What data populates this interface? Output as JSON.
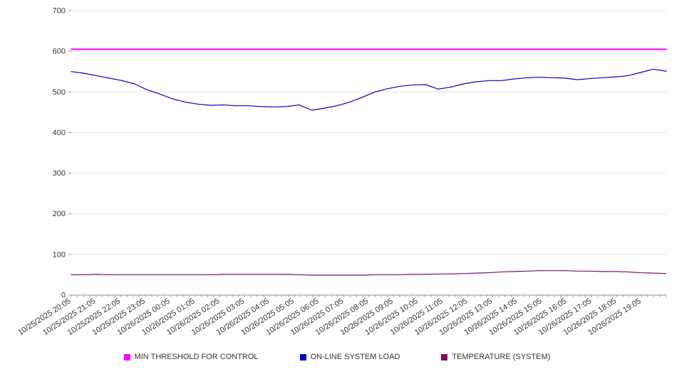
{
  "page": {
    "background": "#ffffff"
  },
  "chart_data": {
    "type": "line",
    "title": "",
    "xlabel": "",
    "ylabel": "",
    "ylim": [
      0,
      700
    ],
    "yticks": [
      0,
      100,
      200,
      300,
      400,
      500,
      600,
      700
    ],
    "grid": true,
    "legend_position": "bottom",
    "axis_color": "#8a8a8a",
    "grid_color": "#e4e4e4",
    "label_color": "#333333",
    "minor_ticks_per_interval": 4,
    "x_labels": [
      "10/25/2025 20:05",
      "10/25/2025 21:05",
      "10/25/2025 22:05",
      "10/25/2025 23:05",
      "10/26/2025 00:05",
      "10/26/2025 01:05",
      "10/26/2025 02:05",
      "10/26/2025 03:05",
      "10/26/2025 04:05",
      "10/26/2025 05:05",
      "10/26/2025 06:05",
      "10/26/2025 07:05",
      "10/26/2025 08:05",
      "10/26/2025 09:05",
      "10/26/2025 10:05",
      "10/26/2025 11:05",
      "10/26/2025 12:05",
      "10/26/2025 13:05",
      "10/26/2025 14:05",
      "10/26/2025 15:05",
      "10/26/2025 16:05",
      "10/26/2025 17:05",
      "10/26/2025 18:05",
      "10/26/2025 19:05"
    ],
    "series": [
      {
        "name": "MIN THRESHOLD FOR CONTROL",
        "color": "#ff00ff",
        "width": 2,
        "values": [
          605,
          605
        ]
      },
      {
        "name": "ON-LINE SYSTEM LOAD",
        "color": "#0000cd",
        "width": 1.2,
        "values": [
          550,
          546,
          540,
          534,
          528,
          520,
          505,
          495,
          483,
          475,
          470,
          467,
          468,
          466,
          466,
          464,
          463,
          464,
          468,
          455,
          460,
          466,
          475,
          487,
          500,
          508,
          514,
          517,
          518,
          507,
          512,
          520,
          525,
          528,
          528,
          532,
          535,
          536,
          535,
          534,
          530,
          533,
          535,
          537,
          540,
          548,
          556,
          551
        ]
      },
      {
        "name": "TEMPERATURE (SYSTEM)",
        "color": "#7a1060",
        "width": 1.2,
        "values": [
          50,
          50,
          51,
          50,
          50,
          50,
          50,
          50,
          50,
          50,
          50,
          50,
          51,
          51,
          51,
          51,
          51,
          51,
          50,
          49,
          49,
          49,
          49,
          49,
          50,
          50,
          50,
          51,
          51,
          52,
          52,
          53,
          54,
          55,
          57,
          58,
          59,
          60,
          60,
          60,
          59,
          59,
          58,
          58,
          57,
          55,
          54,
          53
        ]
      }
    ]
  }
}
